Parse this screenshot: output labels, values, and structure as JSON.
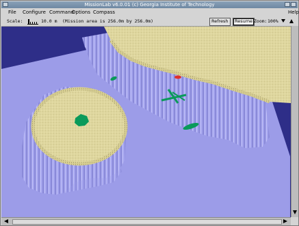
{
  "window": {
    "title": "MissionLab v6.0.01 (c) Georgia Institute of Technology"
  },
  "menu": {
    "items": [
      "File",
      "Configure",
      "Command",
      "Options",
      "Compass"
    ],
    "help": "Help"
  },
  "toolbar": {
    "scale_label": "Scale:",
    "scale_value": "10.0 m",
    "mission_area": "(Mission area is 256.0m by 256.0m)",
    "refresh_label": "Refresh",
    "resume_label": "Resume",
    "zoom_label": "Zoom:",
    "zoom_value": "100%"
  },
  "colors": {
    "background": "#2e2e88",
    "terrain_plane": "#9c9ce8",
    "cliff": "#a6a6f0",
    "plateau_top": "#ddd49a",
    "robot_green": "#0a9a5a",
    "robot_red": "#e0302a"
  }
}
